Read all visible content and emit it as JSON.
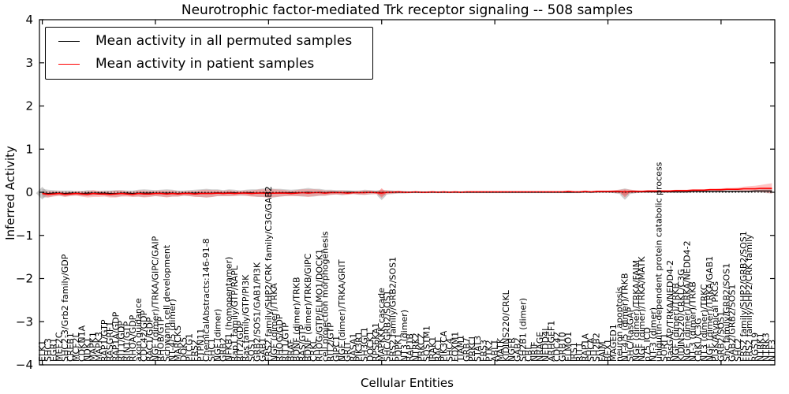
{
  "figure": {
    "background": "#ffffff"
  },
  "legend": {
    "entries": [
      {
        "label": "Mean activity in all permuted samples",
        "color": "#000000"
      },
      {
        "label": "Mean activity in patient samples",
        "color": "#ff0000"
      }
    ],
    "position": "upper left"
  },
  "chart_data": {
    "type": "line",
    "title": "Neurotrophic factor-mediated Trk receptor signaling -- 508 samples",
    "xlabel": "Cellular Entities",
    "ylabel": "Inferred Activity",
    "ylim": [
      -4,
      4
    ],
    "ytick_values": [
      4,
      3,
      2,
      1,
      0,
      -1,
      -2,
      -3,
      -4
    ],
    "ytick_labels": [
      "4",
      "3",
      "2",
      "1",
      "0",
      "−1",
      "−2",
      "−3",
      "−4"
    ],
    "grid": false,
    "zero_line": {
      "y": 0,
      "style": "dotted",
      "color": "#000000"
    },
    "legend_position": "upper left",
    "categories": [
      "ELK1",
      "SHC3",
      "EGR1",
      "MEF2C",
      "SHC2-3/Grb2 family/GDP",
      "CREB1",
      "MCF2L",
      "CDKN1A",
      "NDK1",
      "MAPK1",
      "MAPK3",
      "RAP1/GTP",
      "RASGRF1",
      "RAP1A/GDP",
      "RIT1/GDP",
      "RIN1/GTP",
      "RHOA/GDP",
      "axon guidance",
      "CDC42/GDP",
      "RAC1/GDP",
      "NGF (dimer)/TRKA/GIPC/GAIP",
      "RHOB/GTP",
      "Schwann cell development",
      "NT-4/5 (dimer)",
      "MARCKS",
      "DOK5",
      "PLCG1",
      "FRS2",
      "PTPN11",
      "ChemicalAbstracts:146-91-8",
      "SHC1",
      "NGF (dimer)",
      "GRB2",
      "NFKB1 (homopentamer)",
      "Rap1 family/GTP/RAPL",
      "RIT2/GDP",
      "Ras family/GTP/PI3K",
      "SOS1",
      "GRB2/SOS1/GAB1/PI3K",
      "GAB1",
      "FRS2 family/SHP2/CRK family/C3G/GAB2",
      "NGF (dimer)/TRKA",
      "RHOG/GDP",
      "RIT1/GTP",
      "BRAF",
      "BDNF (dimer)/TRKB",
      "RAS/GTP",
      "BDNF (dimer)/TRKB/GIPC",
      "CRKL",
      "RHOG/GTP/ELMO1/DOCK1",
      "cell projection morphogenesis",
      "RIT2/GTP",
      "GIPC1",
      "NGF (dimer)/TRKA/GRIT",
      "GRIT",
      "RASA1",
      "PIK3R1",
      "SH3GL1",
      "DOCK1",
      "RPS6KA1",
      "MAPKKK cascade",
      "SHC/GRB2/SOS1",
      "FRS2 family/GRB2/SOS1",
      "PDPK1",
      "NT3 (dimer)",
      "RAP1B",
      "NTRK2",
      "PRKCZ",
      "SQSTM1",
      "IRAK1",
      "RAC1",
      "PIK3CA",
      "SHC4",
      "FOXM1",
      "TIAM1",
      "GRB7",
      "PRKCI",
      "STAT3",
      "FRS3",
      "PTK2",
      "ABL1",
      "MATK",
      "KIDINS220/CRKL",
      "NGFR",
      "GAB2",
      "SH2B1 (dimer)",
      "CBL",
      "NRIF",
      "NRAGE",
      "NEDD4L",
      "ARHGEF1",
      "CDC42",
      "GRB10",
      "ELMO1",
      "IRS1",
      "RIT1",
      "RAP1A",
      "SHCA",
      "SH2B2",
      "FAIM",
      "BEX1",
      "MAGED1",
      "neuron apoptosis",
      "NT-4/5 (dimer)/TRKB",
      "SHC/RasGAP",
      "NGF (dimer)/TRKA/FAIM",
      "NGF (dimer)/TRKA/MATK",
      "p75 ICD",
      "NT-3 (dimer)",
      "ubiquitin-dependent protein catabolic process",
      "SORT1",
      "RasGAP/TRKA/NEDD4-2",
      "NGF (dimer)/TRKB",
      "KIDINS220/CRKL/C3G",
      "NGF (dimer)/TRKA/NEDD4-2",
      "NT-3 (dimer)/TRKB",
      "CRKL/C3G",
      "NT3 (dimer)/TRKC",
      "NGF (dimer)/TRKA/GAB1",
      "PI3K/Atypical PKCs",
      "GRB2/SOS1",
      "Shc family/GRB2/SOS1",
      "GAB2/GRB2/SOS1",
      "SHC2",
      "FRS2 family/SHP2/GRB2/SOS1",
      "FRS2 family/SHP2/CRK family",
      "RGS19",
      "NTRK1",
      "NTRK3",
      "NTF3"
    ],
    "series": [
      {
        "name": "Mean activity in all permuted samples",
        "color": "#000000",
        "band_color": "#999999",
        "band_opacity": 0.45,
        "values": [
          -0.02,
          -0.03,
          -0.02,
          -0.02,
          -0.03,
          -0.02,
          -0.02,
          -0.03,
          -0.02,
          -0.02,
          -0.02,
          -0.02,
          -0.03,
          -0.03,
          -0.02,
          -0.02,
          -0.03,
          -0.02,
          -0.02,
          -0.02,
          -0.02,
          -0.02,
          -0.02,
          -0.02,
          -0.03,
          -0.02,
          -0.02,
          -0.02,
          -0.02,
          -0.02,
          -0.02,
          -0.01,
          -0.02,
          -0.01,
          -0.01,
          -0.02,
          -0.01,
          -0.01,
          -0.02,
          -0.01,
          -0.01,
          -0.02,
          -0.01,
          -0.01,
          -0.01,
          -0.01,
          -0.01,
          0,
          -0.01,
          0,
          -0.01,
          0,
          0,
          -0.01,
          0,
          0,
          -0.01,
          0,
          0,
          0,
          -0.01,
          0,
          0,
          0,
          0,
          0,
          0,
          0,
          0,
          0,
          0,
          0,
          0,
          0,
          0,
          0,
          0,
          0,
          0,
          0,
          0,
          0,
          0,
          0,
          0,
          0,
          0,
          0,
          0,
          0,
          0,
          0,
          0,
          0,
          0,
          0,
          0.01,
          0,
          0.01,
          0.01,
          0.01,
          0.01,
          0.01,
          0.01,
          0.01,
          0.01,
          0.01,
          0.01,
          0.01,
          0.01,
          0.01,
          0.01,
          0.01,
          0.01,
          0.01,
          0.02,
          0.02,
          0.02,
          0.02,
          0.02,
          0.02,
          0.02,
          0.02,
          0.02,
          0.02,
          0.02,
          0.03,
          0.03,
          0.03,
          0.03
        ],
        "band": [
          0.1,
          0.09,
          0.07,
          0.06,
          0.07,
          0.06,
          0.05,
          0.06,
          0.07,
          0.06,
          0.05,
          0.06,
          0.07,
          0.08,
          0.07,
          0.06,
          0.07,
          0.08,
          0.09,
          0.08,
          0.07,
          0.08,
          0.09,
          0.08,
          0.07,
          0.06,
          0.07,
          0.08,
          0.09,
          0.1,
          0.09,
          0.08,
          0.07,
          0.08,
          0.07,
          0.06,
          0.07,
          0.08,
          0.09,
          0.1,
          0.11,
          0.1,
          0.09,
          0.08,
          0.07,
          0.08,
          0.09,
          0.1,
          0.09,
          0.08,
          0.07,
          0.06,
          0.05,
          0.06,
          0.05,
          0.04,
          0.05,
          0.06,
          0.05,
          0.04,
          0.07,
          0.05,
          0.04,
          0.03,
          0.03,
          0.02,
          0.02,
          0.02,
          0.02,
          0.02,
          0.02,
          0.02,
          0.02,
          0.02,
          0.02,
          0.02,
          0.02,
          0.02,
          0.02,
          0.02,
          0.02,
          0.02,
          0.02,
          0.02,
          0.02,
          0.02,
          0.02,
          0.02,
          0.02,
          0.02,
          0.02,
          0.02,
          0.02,
          0.02,
          0.02,
          0.02,
          0.02,
          0.02,
          0.02,
          0.02,
          0.02,
          0.03,
          0.05,
          0.08,
          0.05,
          0.03,
          0.02,
          0.02,
          0.02,
          0.02,
          0.02,
          0.02,
          0.02,
          0.02,
          0.02,
          0.02,
          0.02,
          0.02,
          0.02,
          0.02,
          0.02,
          0.02,
          0.02,
          0.02,
          0.02,
          0.02,
          0.03,
          0.04,
          0.05,
          0.06
        ]
      },
      {
        "name": "Mean activity in patient samples",
        "color": "#ff0000",
        "band_color": "#ff5555",
        "band_opacity": 0.35,
        "values": [
          -0.03,
          -0.05,
          -0.04,
          -0.03,
          -0.05,
          -0.04,
          -0.03,
          -0.04,
          -0.05,
          -0.03,
          -0.04,
          -0.04,
          -0.05,
          -0.04,
          -0.03,
          -0.04,
          -0.05,
          -0.03,
          -0.04,
          -0.04,
          -0.03,
          -0.03,
          -0.04,
          -0.03,
          -0.04,
          -0.03,
          -0.03,
          -0.04,
          -0.03,
          -0.03,
          -0.03,
          -0.02,
          -0.03,
          -0.02,
          -0.03,
          -0.02,
          -0.02,
          -0.03,
          -0.02,
          -0.02,
          -0.03,
          -0.02,
          -0.02,
          -0.02,
          -0.03,
          -0.02,
          -0.01,
          -0.02,
          -0.01,
          -0.01,
          -0.02,
          -0.01,
          -0.01,
          -0.01,
          -0.02,
          -0.01,
          -0.01,
          -0.01,
          0,
          -0.01,
          -0.02,
          0,
          0,
          0.01,
          0,
          0,
          0.01,
          0,
          0,
          0.01,
          0,
          0.01,
          0,
          0.01,
          0,
          0.01,
          0.01,
          0.01,
          0.01,
          0.01,
          0.01,
          0.01,
          0.01,
          0.01,
          0.01,
          0.01,
          0.01,
          0.01,
          0.01,
          0.01,
          0.01,
          0.01,
          0.01,
          0.02,
          0.01,
          0.01,
          0.02,
          0.01,
          0.02,
          0.02,
          0.02,
          0.02,
          0.02,
          0.01,
          0.02,
          0.02,
          0.02,
          0.03,
          0.03,
          0.03,
          0.03,
          0.03,
          0.04,
          0.04,
          0.04,
          0.05,
          0.05,
          0.05,
          0.06,
          0.06,
          0.06,
          0.07,
          0.07,
          0.07,
          0.08,
          0.08,
          0.08,
          0.09,
          0.09,
          0.09
        ],
        "band": [
          0.06,
          0.07,
          0.06,
          0.05,
          0.06,
          0.05,
          0.05,
          0.06,
          0.07,
          0.08,
          0.07,
          0.06,
          0.07,
          0.08,
          0.07,
          0.06,
          0.06,
          0.07,
          0.08,
          0.07,
          0.06,
          0.07,
          0.08,
          0.07,
          0.06,
          0.05,
          0.06,
          0.07,
          0.08,
          0.09,
          0.08,
          0.07,
          0.06,
          0.07,
          0.06,
          0.05,
          0.06,
          0.07,
          0.08,
          0.09,
          0.1,
          0.09,
          0.08,
          0.07,
          0.06,
          0.07,
          0.08,
          0.09,
          0.08,
          0.07,
          0.06,
          0.05,
          0.04,
          0.05,
          0.04,
          0.03,
          0.04,
          0.05,
          0.04,
          0.03,
          0.06,
          0.04,
          0.03,
          0.03,
          0.02,
          0.02,
          0.02,
          0.02,
          0.02,
          0.02,
          0.02,
          0.02,
          0.02,
          0.02,
          0.02,
          0.02,
          0.02,
          0.02,
          0.02,
          0.02,
          0.02,
          0.02,
          0.02,
          0.02,
          0.02,
          0.02,
          0.02,
          0.02,
          0.02,
          0.02,
          0.02,
          0.02,
          0.02,
          0.02,
          0.02,
          0.02,
          0.02,
          0.02,
          0.02,
          0.02,
          0.02,
          0.03,
          0.04,
          0.06,
          0.04,
          0.03,
          0.02,
          0.02,
          0.02,
          0.02,
          0.02,
          0.02,
          0.02,
          0.02,
          0.02,
          0.02,
          0.02,
          0.02,
          0.02,
          0.02,
          0.03,
          0.03,
          0.03,
          0.04,
          0.05,
          0.06,
          0.07,
          0.08,
          0.1,
          0.12
        ]
      }
    ],
    "markers": [
      {
        "index": 0,
        "series": "permuted",
        "y": -0.02,
        "size": 8
      },
      {
        "index": 60,
        "series": "permuted",
        "y": -0.07,
        "size": 6
      },
      {
        "index": 60,
        "series": "patient",
        "y": -0.015,
        "size": 6
      },
      {
        "index": 103,
        "series": "permuted",
        "y": -0.065,
        "size": 6
      },
      {
        "index": 103,
        "series": "patient",
        "y": -0.025,
        "size": 5
      }
    ]
  }
}
